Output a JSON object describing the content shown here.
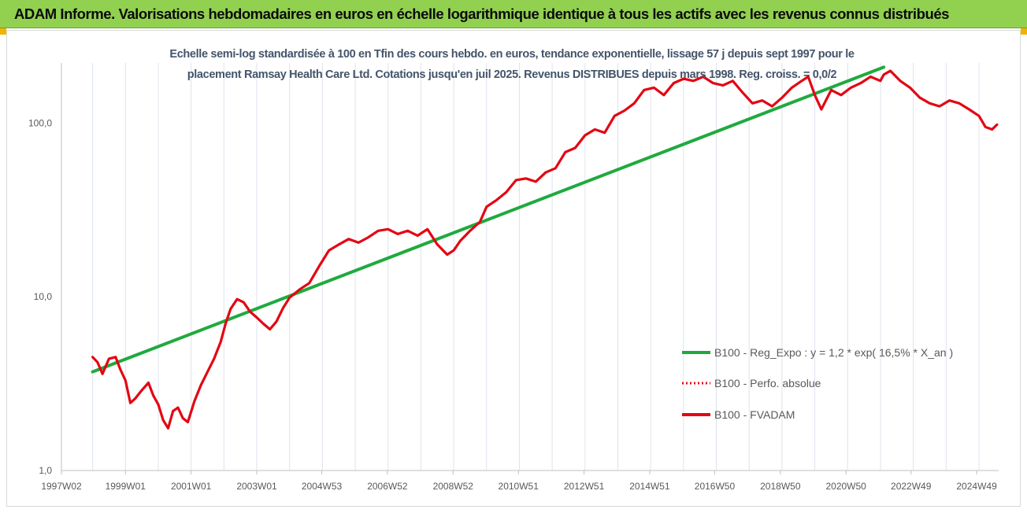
{
  "header": {
    "title": "ADAM Informe. Valorisations hebdomadaires en euros en échelle logarithmique identique à tous les actifs avec les revenus connus distribués"
  },
  "colors": {
    "banner": "#92d050",
    "accent": "#f2b400",
    "series_regression": "#1faa3f",
    "series_fvadam": "#e30613",
    "subtitle": "#44546a"
  },
  "chart_data": {
    "type": "line",
    "title": "",
    "subtitle_lines": [
      "Echelle semi-log standardisée à 100 en Tfin des cours hebdo. en euros, tendance exponentielle, lissage 57 j depuis sept 1997  pour le",
      "placement Ramsay Health Care Ltd. Cotations jusqu'en juil 2025. Revenus DISTRIBUES depuis mars 1998. Reg. croiss. = 0,0/2"
    ],
    "xlabel": "",
    "ylabel": "",
    "y_scale": "log",
    "ylim": [
      1,
      200
    ],
    "x_range": [
      1997.05,
      2025.6
    ],
    "y_ticks": [
      {
        "value": 1,
        "label": "1,0"
      },
      {
        "value": 10,
        "label": "10,0"
      },
      {
        "value": 100,
        "label": "100,0"
      }
    ],
    "x_ticks": [
      {
        "value": 1997.05,
        "label": "1997W02"
      },
      {
        "value": 1999.0,
        "label": "1999W01"
      },
      {
        "value": 2001.0,
        "label": "2001W01"
      },
      {
        "value": 2003.0,
        "label": "2003W01"
      },
      {
        "value": 2004.98,
        "label": "2004W53"
      },
      {
        "value": 2006.98,
        "label": "2006W52"
      },
      {
        "value": 2008.98,
        "label": "2008W52"
      },
      {
        "value": 2010.97,
        "label": "2010W51"
      },
      {
        "value": 2012.97,
        "label": "2012W51"
      },
      {
        "value": 2014.97,
        "label": "2014W51"
      },
      {
        "value": 2016.95,
        "label": "2016W50"
      },
      {
        "value": 2018.95,
        "label": "2018W50"
      },
      {
        "value": 2020.95,
        "label": "2020W50"
      },
      {
        "value": 2022.93,
        "label": "2022W49"
      },
      {
        "value": 2024.93,
        "label": "2024W49"
      }
    ],
    "grid": "vertical",
    "legend_position": "bottom-right",
    "series": [
      {
        "name": "B100 - Reg_Expo : y = 1,2 * exp( 16,5% *  X_an )",
        "style": "solid",
        "color": "#1faa3f",
        "x": [
          1998.0,
          2022.1
        ],
        "y": [
          3.7,
          210
        ]
      },
      {
        "name": "B100 - Perfo. absolue",
        "style": "dotted",
        "color": "#e30613",
        "x": [],
        "y": []
      },
      {
        "name": "B100 - FVADAM",
        "style": "solid",
        "color": "#e30613",
        "x": [
          1998.0,
          1998.15,
          1998.3,
          1998.5,
          1998.7,
          1998.85,
          1999.0,
          1999.15,
          1999.3,
          1999.5,
          1999.7,
          1999.85,
          2000.0,
          2000.15,
          2000.3,
          2000.45,
          2000.6,
          2000.75,
          2000.9,
          2001.1,
          2001.3,
          2001.5,
          2001.7,
          2001.9,
          2002.05,
          2002.2,
          2002.4,
          2002.6,
          2002.8,
          2003.0,
          2003.2,
          2003.4,
          2003.6,
          2003.8,
          2004.0,
          2004.3,
          2004.6,
          2004.9,
          2005.2,
          2005.5,
          2005.8,
          2006.1,
          2006.4,
          2006.7,
          2007.0,
          2007.3,
          2007.6,
          2007.9,
          2008.2,
          2008.5,
          2008.8,
          2009.0,
          2009.2,
          2009.5,
          2009.8,
          2010.0,
          2010.3,
          2010.6,
          2010.9,
          2011.2,
          2011.5,
          2011.8,
          2012.1,
          2012.4,
          2012.7,
          2013.0,
          2013.3,
          2013.6,
          2013.9,
          2014.2,
          2014.5,
          2014.8,
          2015.1,
          2015.4,
          2015.7,
          2016.0,
          2016.3,
          2016.6,
          2016.9,
          2017.2,
          2017.5,
          2017.8,
          2018.1,
          2018.4,
          2018.7,
          2019.0,
          2019.3,
          2019.6,
          2019.8,
          2020.0,
          2020.2,
          2020.5,
          2020.8,
          2021.1,
          2021.4,
          2021.7,
          2022.0,
          2022.1,
          2022.3,
          2022.6,
          2022.9,
          2023.2,
          2023.5,
          2023.8,
          2024.1,
          2024.4,
          2024.7,
          2025.0,
          2025.2,
          2025.4,
          2025.55
        ],
        "y": [
          4.5,
          4.2,
          3.6,
          4.4,
          4.5,
          3.8,
          3.3,
          2.45,
          2.6,
          2.9,
          3.2,
          2.7,
          2.4,
          1.95,
          1.75,
          2.2,
          2.3,
          2.0,
          1.9,
          2.5,
          3.1,
          3.7,
          4.4,
          5.5,
          7.0,
          8.5,
          9.7,
          9.3,
          8.2,
          7.6,
          7.0,
          6.5,
          7.2,
          8.6,
          9.9,
          11.0,
          12.0,
          15.0,
          18.5,
          20.0,
          21.5,
          20.5,
          22.0,
          24.0,
          24.5,
          23.0,
          24.0,
          22.5,
          24.5,
          20.0,
          17.5,
          18.5,
          21.0,
          24.0,
          27.0,
          33.0,
          36.0,
          40.0,
          47.0,
          48.0,
          46.0,
          52.0,
          55.0,
          68.0,
          72.0,
          85.0,
          92.0,
          88.0,
          110.0,
          118.0,
          130.0,
          155.0,
          160.0,
          145.0,
          170.0,
          180.0,
          175.0,
          185.0,
          170.0,
          165.0,
          175.0,
          150.0,
          130.0,
          135.0,
          125.0,
          140.0,
          160.0,
          175.0,
          185.0,
          145.0,
          120.0,
          155.0,
          145.0,
          160.0,
          170.0,
          185.0,
          175.0,
          190.0,
          200.0,
          175.0,
          160.0,
          140.0,
          130.0,
          125.0,
          135.0,
          130.0,
          120.0,
          110.0,
          95.0,
          92.0,
          98.0
        ]
      }
    ]
  }
}
